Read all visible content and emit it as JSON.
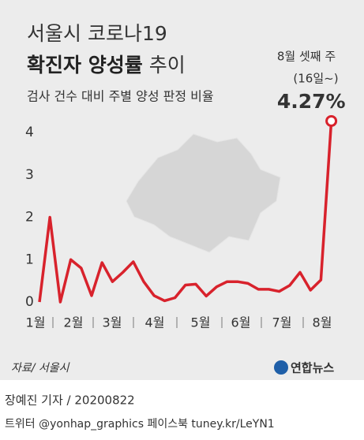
{
  "chart_data": {
    "type": "line",
    "title": "서울시 코로나19",
    "title_bold": "확진자 양성률",
    "title_rest": "추이",
    "subtitle": "검사 건수 대비 주별 양성 판정 비율",
    "annotation": [
      "8월 셋째 주",
      "(16일~)"
    ],
    "months": [
      "1월",
      "2월",
      "3월",
      "4월",
      "5월",
      "6월",
      "7월",
      "8월"
    ],
    "values": [
      0,
      2.0,
      0,
      1.0,
      0.8,
      0.15,
      0.93,
      0.48,
      0.7,
      0.95,
      0.48,
      0.15,
      0.03,
      0.1,
      0.4,
      0.42,
      0.14,
      0.36,
      0.48,
      0.48,
      0.44,
      0.3,
      0.3,
      0.25,
      0.39,
      0.7,
      0.28,
      0.52,
      4.27
    ],
    "value_labels": [
      null,
      null,
      null,
      null,
      null,
      null,
      null,
      null,
      null,
      null,
      null,
      null,
      null,
      null,
      null,
      null,
      null,
      null,
      null,
      null,
      null,
      null,
      null,
      null,
      null,
      null,
      null,
      null,
      "4.27%"
    ],
    "color": "#d8222c",
    "ylim": [
      0,
      4.5
    ],
    "yticks": [
      0,
      1,
      2,
      3,
      4
    ],
    "source": "자료/ 서울시",
    "logo": "연합뉴스",
    "byline": "장예진 기자 / 20200822",
    "social": "트위터 @yonhap_graphics  페이스북 tuney.kr/LeYN1"
  }
}
